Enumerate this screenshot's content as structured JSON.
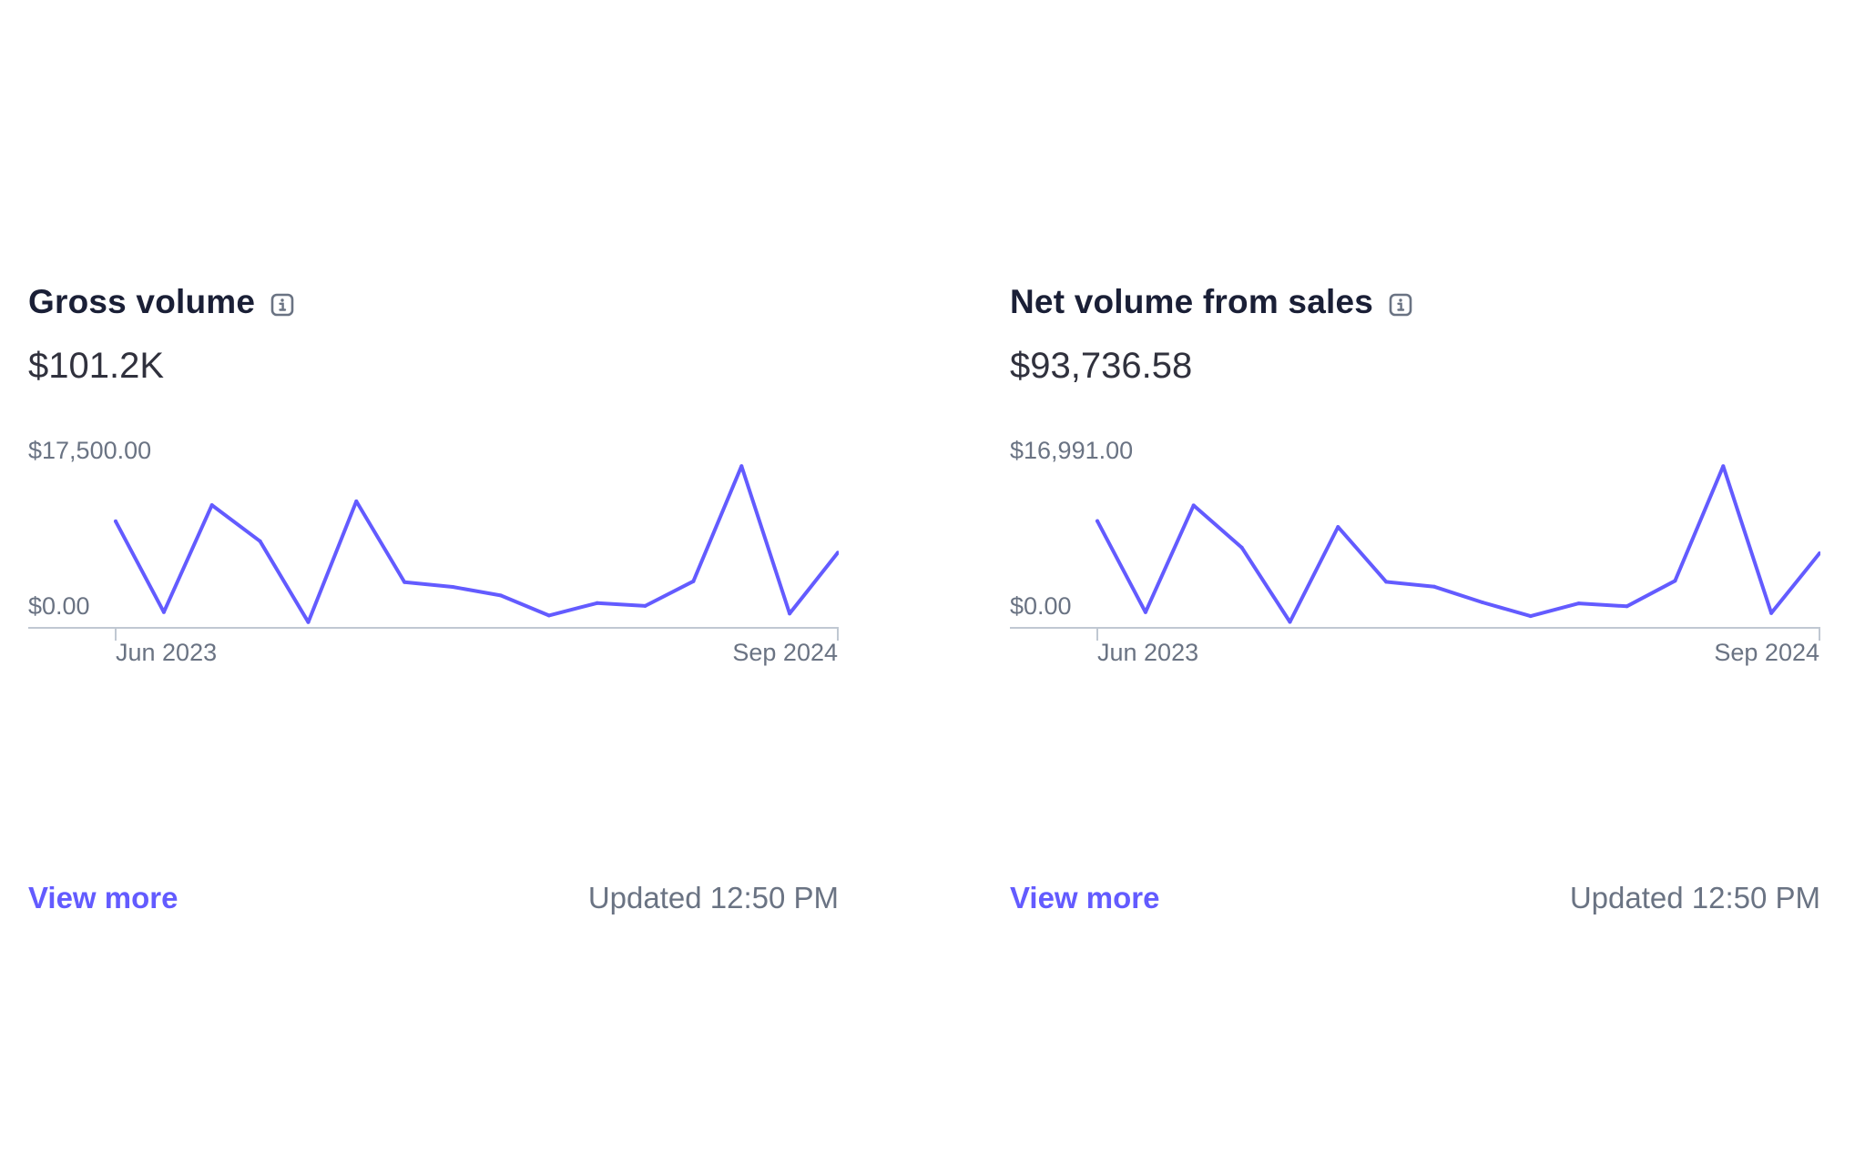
{
  "accent_color": "#635bff",
  "cards": [
    {
      "title": "Gross volume",
      "info_icon": "info-icon",
      "value": "$101.2K",
      "chart_data": {
        "type": "line",
        "y_max_label": "$17,500.00",
        "y_min_label": "$0.00",
        "x_start_label": "Jun 2023",
        "x_end_label": "Sep 2024",
        "ylim": [
          0,
          17500
        ],
        "x": [
          "Jun 2023",
          "Jul 2023",
          "Aug 2023",
          "Sep 2023",
          "Oct 2023",
          "Nov 2023",
          "Dec 2023",
          "Jan 2024",
          "Feb 2024",
          "Mar 2024",
          "Apr 2024",
          "May 2024",
          "Jun 2024",
          "Jul 2024",
          "Aug 2024",
          "Sep 2024"
        ],
        "values": [
          11200,
          1650,
          12900,
          9100,
          600,
          13300,
          4800,
          4300,
          3400,
          1300,
          2600,
          2300,
          4900,
          17000,
          1500,
          7900
        ],
        "line_color": "#635bff"
      },
      "view_more_label": "View more",
      "updated_text": "Updated 12:50 PM"
    },
    {
      "title": "Net volume from sales",
      "info_icon": "info-icon",
      "value": "$93,736.58",
      "chart_data": {
        "type": "line",
        "y_max_label": "$16,991.00",
        "y_min_label": "$0.00",
        "x_start_label": "Jun 2023",
        "x_end_label": "Sep 2024",
        "ylim": [
          0,
          16991
        ],
        "x": [
          "Jun 2023",
          "Jul 2023",
          "Aug 2023",
          "Sep 2023",
          "Oct 2023",
          "Nov 2023",
          "Dec 2023",
          "Jan 2024",
          "Feb 2024",
          "Mar 2024",
          "Apr 2024",
          "May 2024",
          "Jun 2024",
          "Jul 2024",
          "Aug 2024",
          "Sep 2024"
        ],
        "values": [
          10900,
          1600,
          12500,
          8200,
          600,
          10300,
          4700,
          4200,
          2600,
          1200,
          2500,
          2200,
          4800,
          16500,
          1500,
          7600
        ],
        "line_color": "#635bff"
      },
      "view_more_label": "View more",
      "updated_text": "Updated 12:50 PM"
    }
  ]
}
